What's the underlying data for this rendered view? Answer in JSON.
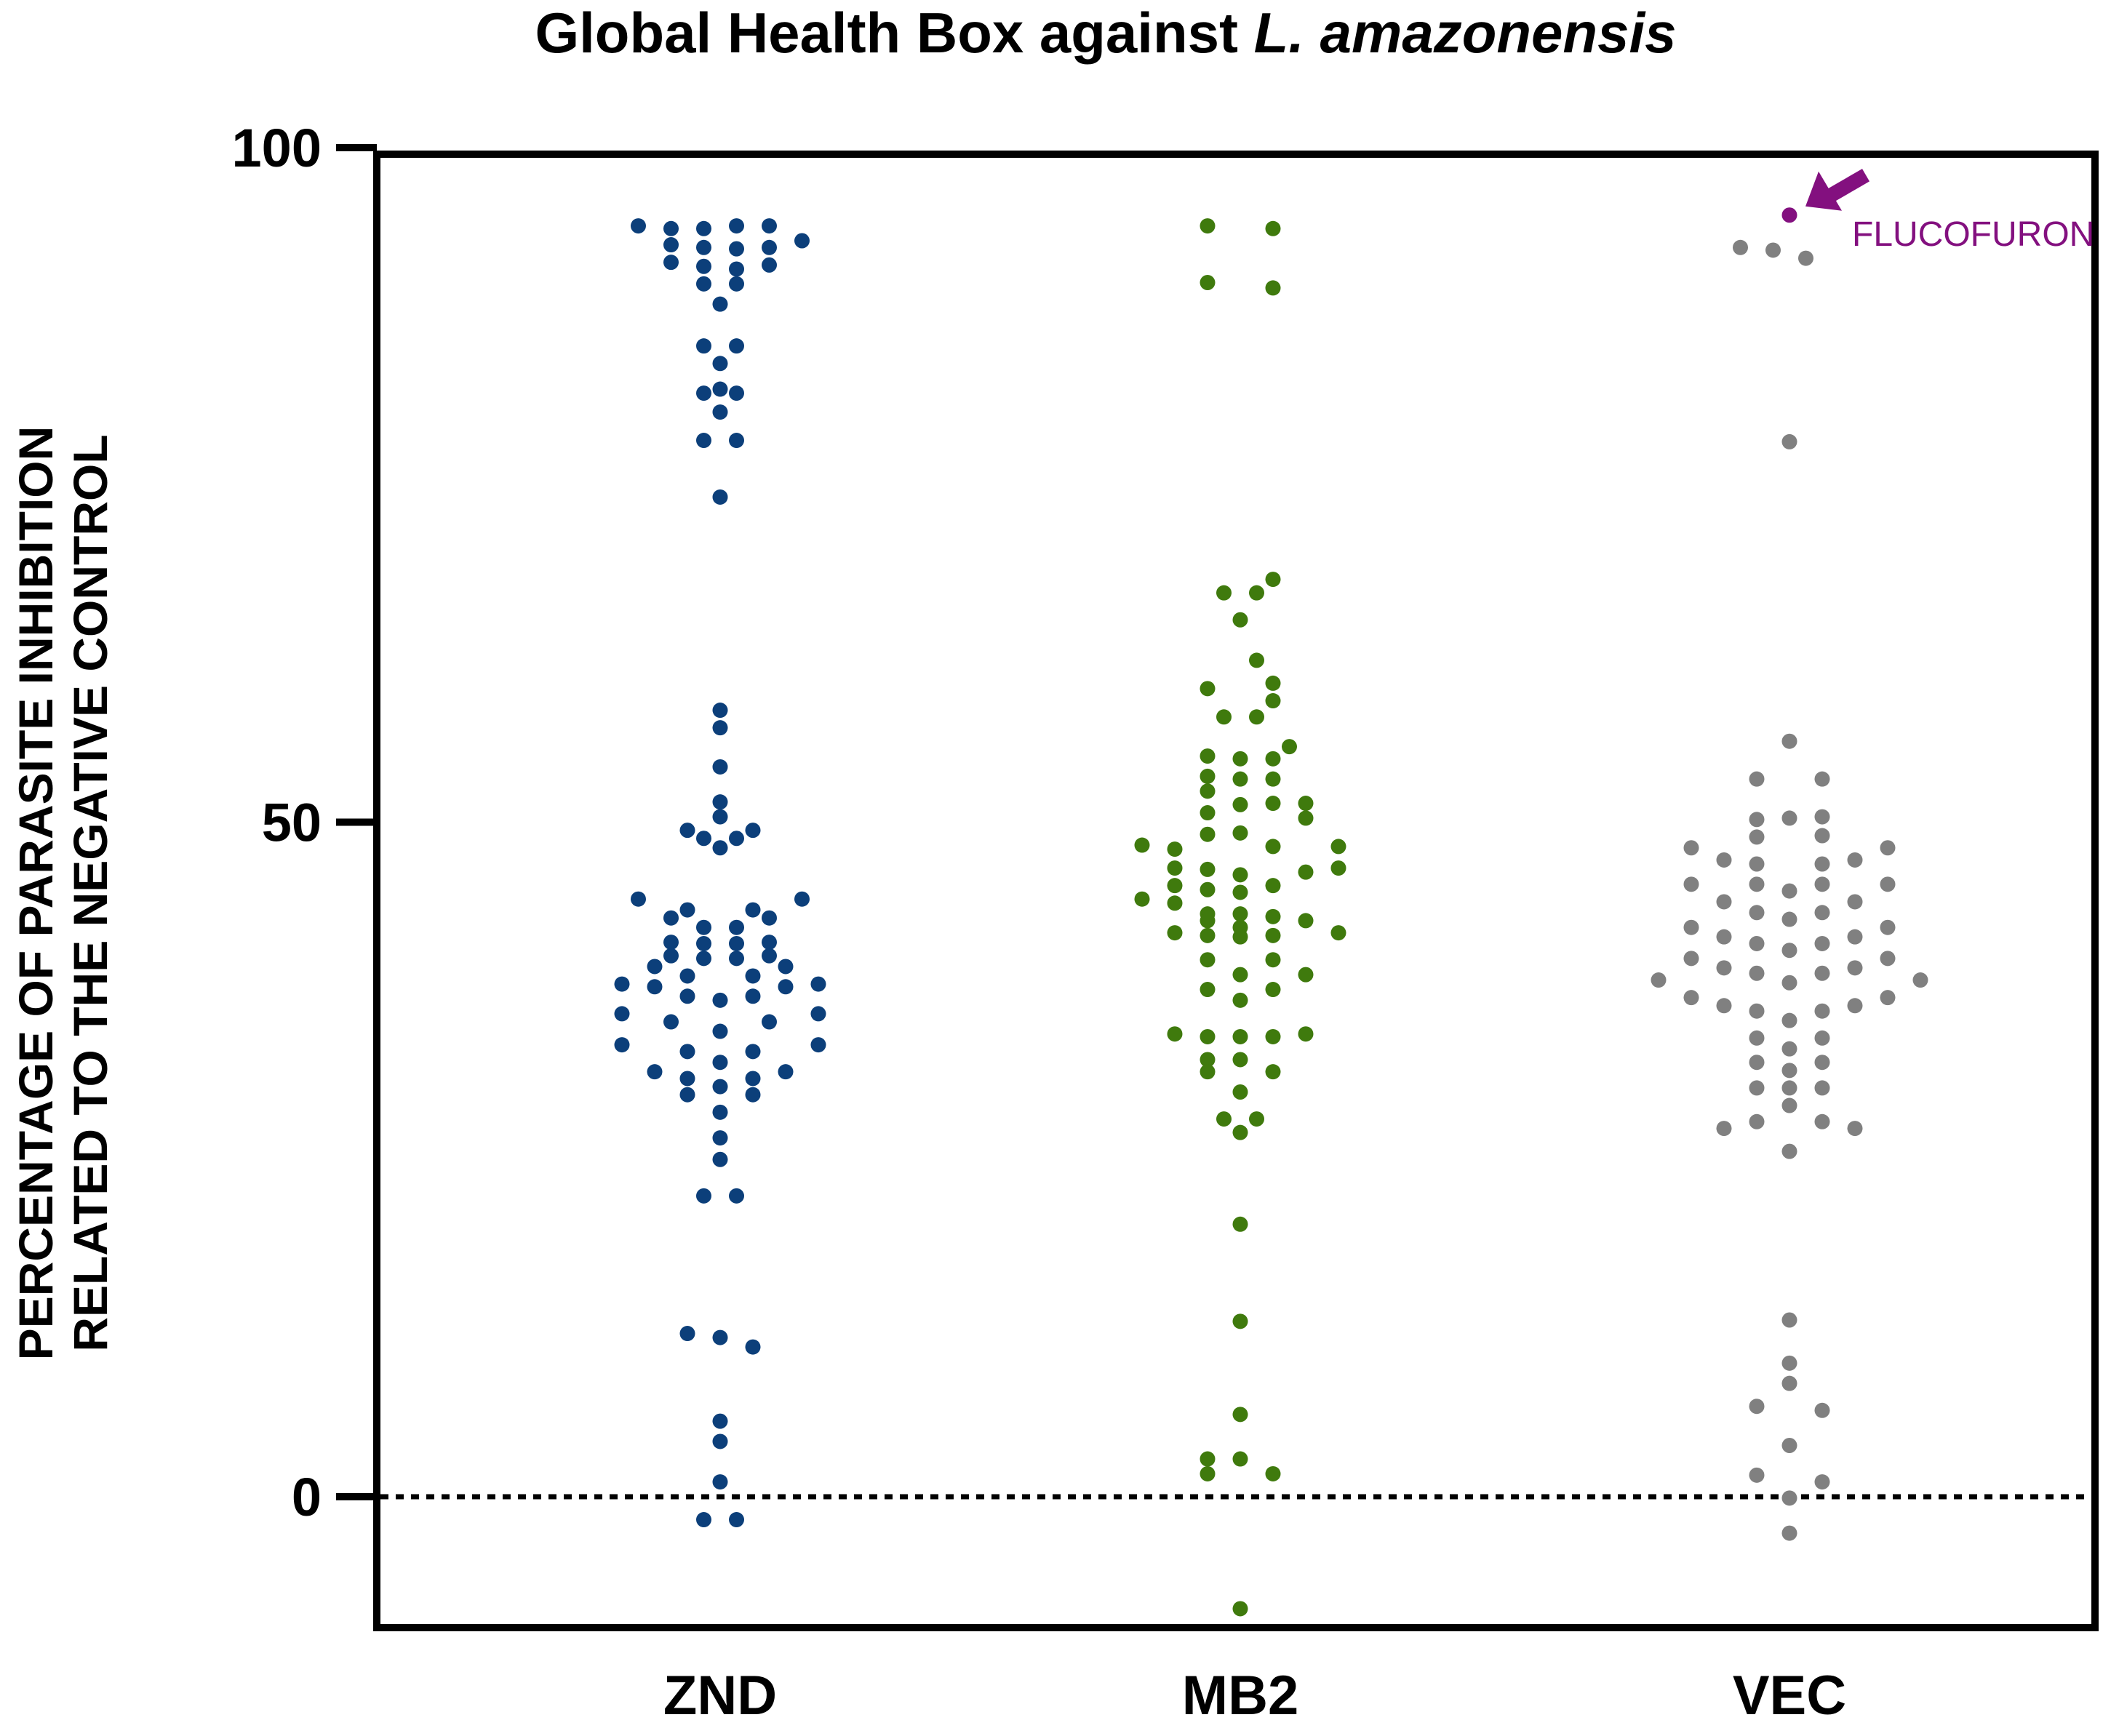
{
  "chart_data": {
    "type": "scatter",
    "title_main": "Global Health Box against ",
    "title_italic": "L. amazonensis",
    "ylabel_line1": "PERCENTAGE OF PARASITE INHIBITION",
    "ylabel_line2": "RELATED TO THE NEGATIVE CONTROL",
    "categories": [
      "ZND",
      "MB2",
      "VEC"
    ],
    "y_ticks": [
      0,
      50,
      100
    ],
    "y_tick_labels": [
      "0",
      "50",
      "100"
    ],
    "ylim": [
      -10,
      100
    ],
    "reference_line": 0,
    "series": [
      {
        "name": "ZND",
        "color": "#0c3f7a",
        "points": [
          [
            -2.5,
            94.2
          ],
          [
            -1.5,
            94
          ],
          [
            -0.5,
            94
          ],
          [
            0.5,
            94.2
          ],
          [
            1.5,
            94.2
          ],
          [
            2.5,
            93.1
          ],
          [
            -1.5,
            92.8
          ],
          [
            -0.5,
            92.6
          ],
          [
            0.5,
            92.5
          ],
          [
            1.5,
            92.6
          ],
          [
            -1.5,
            91.5
          ],
          [
            -0.5,
            91.2
          ],
          [
            0.5,
            91
          ],
          [
            1.5,
            91.3
          ],
          [
            -0.5,
            89.9
          ],
          [
            0.5,
            89.9
          ],
          [
            0,
            88.4
          ],
          [
            -0.5,
            85.3
          ],
          [
            0.5,
            85.3
          ],
          [
            0,
            84
          ],
          [
            0,
            82.1
          ],
          [
            -0.5,
            81.8
          ],
          [
            0.5,
            81.8
          ],
          [
            0,
            80.4
          ],
          [
            -0.5,
            78.3
          ],
          [
            0.5,
            78.3
          ],
          [
            0,
            74.1
          ],
          [
            0,
            58.3
          ],
          [
            0,
            57
          ],
          [
            0,
            54.1
          ],
          [
            0,
            51.5
          ],
          [
            0,
            50.4
          ],
          [
            -1,
            49.4
          ],
          [
            1,
            49.4
          ],
          [
            -0.5,
            48.8
          ],
          [
            0.5,
            48.8
          ],
          [
            0,
            48.1
          ],
          [
            -2.5,
            44.3
          ],
          [
            2.5,
            44.3
          ],
          [
            -1,
            43.5
          ],
          [
            1,
            43.5
          ],
          [
            -1.5,
            42.9
          ],
          [
            1.5,
            42.9
          ],
          [
            -0.5,
            42.2
          ],
          [
            0.5,
            42.2
          ],
          [
            -1.5,
            41.1
          ],
          [
            1.5,
            41.1
          ],
          [
            -0.5,
            41
          ],
          [
            0.5,
            41
          ],
          [
            -1.5,
            40.1
          ],
          [
            1.5,
            40.1
          ],
          [
            -0.5,
            39.9
          ],
          [
            0.5,
            39.9
          ],
          [
            -2,
            39.3
          ],
          [
            2,
            39.3
          ],
          [
            -1,
            38.6
          ],
          [
            1,
            38.6
          ],
          [
            -3,
            38
          ],
          [
            3,
            38
          ],
          [
            -2,
            37.8
          ],
          [
            2,
            37.8
          ],
          [
            -1,
            37.1
          ],
          [
            1,
            37.1
          ],
          [
            0,
            36.8
          ],
          [
            -3,
            35.8
          ],
          [
            3,
            35.8
          ],
          [
            -1.5,
            35.2
          ],
          [
            1.5,
            35.2
          ],
          [
            0,
            34.5
          ],
          [
            -3,
            33.5
          ],
          [
            3,
            33.5
          ],
          [
            -1,
            33
          ],
          [
            1,
            33
          ],
          [
            0,
            32.2
          ],
          [
            -2,
            31.5
          ],
          [
            2,
            31.5
          ],
          [
            -1,
            31
          ],
          [
            1,
            31
          ],
          [
            0,
            30.4
          ],
          [
            -1,
            29.8
          ],
          [
            1,
            29.8
          ],
          [
            0,
            28.5
          ],
          [
            0,
            26.6
          ],
          [
            0,
            25
          ],
          [
            -0.5,
            22.3
          ],
          [
            0.5,
            22.3
          ],
          [
            -1,
            12.1
          ],
          [
            0,
            11.8
          ],
          [
            1,
            11.1
          ],
          [
            0,
            5.6
          ],
          [
            0,
            4.1
          ],
          [
            0,
            1.1
          ],
          [
            -0.5,
            -1.7
          ],
          [
            0.5,
            -1.7
          ]
        ]
      },
      {
        "name": "MB2",
        "color": "#3f7a0d",
        "points": [
          [
            -1,
            94.2
          ],
          [
            1,
            94
          ],
          [
            -1,
            90
          ],
          [
            1,
            89.6
          ],
          [
            1,
            68
          ],
          [
            -0.5,
            67
          ],
          [
            0.5,
            67
          ],
          [
            0,
            65
          ],
          [
            0.5,
            62
          ],
          [
            1,
            60.3
          ],
          [
            -1,
            59.9
          ],
          [
            1,
            59
          ],
          [
            -0.5,
            57.8
          ],
          [
            0.5,
            57.8
          ],
          [
            1.5,
            55.6
          ],
          [
            -1,
            54.9
          ],
          [
            0,
            54.7
          ],
          [
            1,
            54.7
          ],
          [
            -1,
            53.4
          ],
          [
            0,
            53.2
          ],
          [
            1,
            53.2
          ],
          [
            -1,
            52.3
          ],
          [
            1,
            51.4
          ],
          [
            2,
            51.4
          ],
          [
            0,
            51.3
          ],
          [
            -1,
            50.7
          ],
          [
            2,
            50.3
          ],
          [
            0,
            49.2
          ],
          [
            -1,
            49.1
          ],
          [
            -3,
            48.3
          ],
          [
            -2,
            48
          ],
          [
            1,
            48.2
          ],
          [
            3,
            48.2
          ],
          [
            -2,
            46.6
          ],
          [
            3,
            46.6
          ],
          [
            -1,
            46.5
          ],
          [
            0,
            46.1
          ],
          [
            2,
            46.3
          ],
          [
            -2,
            45.3
          ],
          [
            1,
            45.3
          ],
          [
            -1,
            45
          ],
          [
            0,
            44.8
          ],
          [
            -3,
            44.3
          ],
          [
            -2,
            44
          ],
          [
            -1,
            43.2
          ],
          [
            0,
            43.2
          ],
          [
            1,
            43
          ],
          [
            -1,
            42.7
          ],
          [
            2,
            42.7
          ],
          [
            0,
            42.2
          ],
          [
            -2,
            41.8
          ],
          [
            -1,
            41.6
          ],
          [
            0,
            41.5
          ],
          [
            1,
            41.6
          ],
          [
            3,
            41.8
          ],
          [
            -1,
            39.8
          ],
          [
            1,
            39.8
          ],
          [
            0,
            38.7
          ],
          [
            2,
            38.7
          ],
          [
            -1,
            37.6
          ],
          [
            1,
            37.6
          ],
          [
            0,
            36.8
          ],
          [
            -2,
            34.3
          ],
          [
            -1,
            34.1
          ],
          [
            0,
            34.1
          ],
          [
            1,
            34.1
          ],
          [
            2,
            34.3
          ],
          [
            -1,
            32.4
          ],
          [
            0,
            32.4
          ],
          [
            -1,
            31.5
          ],
          [
            1,
            31.5
          ],
          [
            0,
            30
          ],
          [
            -0.5,
            28
          ],
          [
            0.5,
            28
          ],
          [
            0,
            27
          ],
          [
            0,
            20.2
          ],
          [
            0,
            13
          ],
          [
            0,
            6.1
          ],
          [
            -1,
            2.8
          ],
          [
            0,
            2.8
          ],
          [
            -1,
            1.7
          ],
          [
            1,
            1.7
          ],
          [
            0,
            -8.3
          ]
        ]
      },
      {
        "name": "VEC",
        "color": "#808080",
        "points": [
          [
            -1.5,
            92.6
          ],
          [
            -0.5,
            92.4
          ],
          [
            0.5,
            91.8
          ],
          [
            0,
            78.2
          ],
          [
            0,
            56
          ],
          [
            -1,
            53.2
          ],
          [
            1,
            53.2
          ],
          [
            -1,
            50.2
          ],
          [
            0,
            50.3
          ],
          [
            1,
            50.4
          ],
          [
            -1,
            48.9
          ],
          [
            1,
            49
          ],
          [
            -3,
            48.1
          ],
          [
            3,
            48.1
          ],
          [
            -2,
            47.2
          ],
          [
            2,
            47.2
          ],
          [
            -1,
            46.9
          ],
          [
            1,
            46.9
          ],
          [
            -3,
            45.4
          ],
          [
            3,
            45.4
          ],
          [
            -1,
            45.4
          ],
          [
            1,
            45.4
          ],
          [
            0,
            44.9
          ],
          [
            -2,
            44.1
          ],
          [
            2,
            44.1
          ],
          [
            -1,
            43.3
          ],
          [
            1,
            43.3
          ],
          [
            0,
            42.8
          ],
          [
            -3,
            42.2
          ],
          [
            3,
            42.2
          ],
          [
            -2,
            41.5
          ],
          [
            2,
            41.5
          ],
          [
            -1,
            41
          ],
          [
            1,
            41
          ],
          [
            0,
            40.5
          ],
          [
            -3,
            39.9
          ],
          [
            3,
            39.9
          ],
          [
            -2,
            39.2
          ],
          [
            2,
            39.2
          ],
          [
            -1,
            38.8
          ],
          [
            1,
            38.8
          ],
          [
            -4,
            38.3
          ],
          [
            4,
            38.3
          ],
          [
            0,
            38.1
          ],
          [
            -3,
            37
          ],
          [
            3,
            37
          ],
          [
            -2,
            36.4
          ],
          [
            2,
            36.4
          ],
          [
            -1,
            36
          ],
          [
            1,
            36
          ],
          [
            0,
            35.3
          ],
          [
            -1,
            34
          ],
          [
            1,
            34
          ],
          [
            0,
            33.2
          ],
          [
            -1,
            32.2
          ],
          [
            1,
            32.2
          ],
          [
            0,
            31.6
          ],
          [
            -1,
            30.3
          ],
          [
            0,
            30.3
          ],
          [
            1,
            30.3
          ],
          [
            0,
            29
          ],
          [
            -1,
            27.8
          ],
          [
            1,
            27.8
          ],
          [
            -2,
            27.3
          ],
          [
            2,
            27.3
          ],
          [
            0,
            25.6
          ],
          [
            0,
            13.1
          ],
          [
            0,
            9.9
          ],
          [
            0,
            8.4
          ],
          [
            -1,
            6.7
          ],
          [
            1,
            6.4
          ],
          [
            0,
            3.8
          ],
          [
            -1,
            1.6
          ],
          [
            1,
            1.1
          ],
          [
            0,
            -0.1
          ],
          [
            0,
            -2.7
          ]
        ]
      }
    ],
    "highlight": {
      "label": "FLUCOFURON",
      "category": "VEC",
      "offset": 0,
      "value": 95,
      "color": "#83107f"
    }
  }
}
